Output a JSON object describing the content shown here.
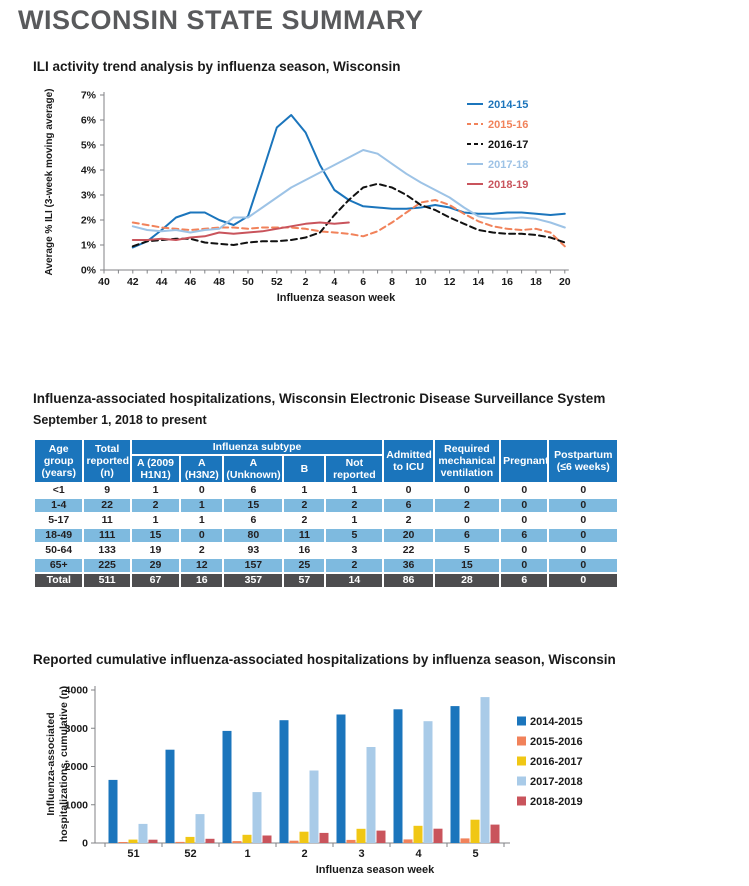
{
  "page_title": "WISCONSIN STATE SUMMARY",
  "sections": {
    "ili": {
      "heading": "ILI activity trend analysis by influenza season, Wisconsin"
    },
    "hospitalizations": {
      "heading": "Influenza-associated hospitalizations, Wisconsin Electronic Disease Surveillance System",
      "subheading": "September 1, 2018 to present",
      "table": {
        "header_groups": {
          "age_group": "Age group (years)",
          "total_reported": "Total reported (n)",
          "subtype_group": "Influenza subtype",
          "subtype_columns": [
            "A (2009 H1N1)",
            "A (H3N2)",
            "A (Unknown)",
            "B",
            "Not reported"
          ],
          "admitted_icu": "Admitted to ICU",
          "mech_vent": "Required mechanical ventilation",
          "pregnant": "Pregnant",
          "postpartum": "Postpartum (≤6 weeks)"
        },
        "rows": [
          {
            "age_group": "<1",
            "values": [
              9,
              1,
              0,
              6,
              1,
              1,
              0,
              0,
              0,
              0
            ]
          },
          {
            "age_group": "1-4",
            "values": [
              22,
              2,
              1,
              15,
              2,
              2,
              6,
              2,
              0,
              0
            ]
          },
          {
            "age_group": "5-17",
            "values": [
              11,
              1,
              1,
              6,
              2,
              1,
              2,
              0,
              0,
              0
            ]
          },
          {
            "age_group": "18-49",
            "values": [
              111,
              15,
              0,
              80,
              11,
              5,
              20,
              6,
              6,
              0
            ]
          },
          {
            "age_group": "50-64",
            "values": [
              133,
              19,
              2,
              93,
              16,
              3,
              22,
              5,
              0,
              0
            ]
          },
          {
            "age_group": "65+",
            "values": [
              225,
              29,
              12,
              157,
              25,
              2,
              36,
              15,
              0,
              0
            ]
          }
        ],
        "total_row": {
          "age_group": "Total",
          "values": [
            511,
            67,
            16,
            357,
            57,
            14,
            86,
            28,
            6,
            0
          ]
        },
        "colors": {
          "header_bg": "#1b75bc",
          "stripe_bg": "#7ebadf",
          "total_bg": "#4d4d4f"
        }
      }
    },
    "cumulative": {
      "heading": "Reported cumulative influenza-associated hospitalizations by influenza season, Wisconsin"
    }
  },
  "chart_data": [
    {
      "id": "ili_trend",
      "type": "line",
      "title": "ILI activity trend analysis by influenza season, Wisconsin",
      "xlabel": "Influenza season week",
      "ylabel": "Average % ILI (3-week moving average)",
      "ylim": [
        0,
        7
      ],
      "yticks": [
        "0%",
        "1%",
        "2%",
        "3%",
        "4%",
        "5%",
        "6%",
        "7%"
      ],
      "x_weeks": [
        40,
        41,
        42,
        43,
        44,
        45,
        46,
        47,
        48,
        49,
        50,
        51,
        52,
        1,
        2,
        3,
        4,
        5,
        6,
        7,
        8,
        9,
        10,
        11,
        12,
        13,
        14,
        15,
        16,
        17,
        18,
        19,
        20
      ],
      "x_labeled_ticks": [
        40,
        42,
        44,
        46,
        48,
        50,
        52,
        2,
        4,
        6,
        8,
        10,
        12,
        14,
        16,
        18,
        20
      ],
      "series_start_week": 42,
      "legend_position": "upper right",
      "axis_color": "#808285",
      "series": [
        {
          "name": "2014-15",
          "color": "#1b75bc",
          "style": "solid",
          "values": [
            0.9,
            1.15,
            1.6,
            2.1,
            2.3,
            2.3,
            2.0,
            1.8,
            2.15,
            3.9,
            5.7,
            6.2,
            5.5,
            4.2,
            3.2,
            2.8,
            2.55,
            2.5,
            2.45,
            2.45,
            2.5,
            2.6,
            2.5,
            2.3,
            2.25,
            2.25,
            2.3,
            2.3,
            2.25,
            2.2,
            2.25
          ]
        },
        {
          "name": "2015-16",
          "color": "#f1825a",
          "style": "dashed",
          "values": [
            1.9,
            1.8,
            1.7,
            1.65,
            1.6,
            1.65,
            1.7,
            1.7,
            1.65,
            1.7,
            1.7,
            1.7,
            1.65,
            1.55,
            1.5,
            1.45,
            1.35,
            1.55,
            1.9,
            2.3,
            2.7,
            2.8,
            2.6,
            2.25,
            1.95,
            1.75,
            1.65,
            1.6,
            1.65,
            1.5,
            0.95
          ]
        },
        {
          "name": "2016-17",
          "color": "#111111",
          "style": "dashed",
          "values": [
            0.95,
            1.15,
            1.2,
            1.25,
            1.25,
            1.1,
            1.05,
            1.0,
            1.1,
            1.15,
            1.15,
            1.2,
            1.3,
            1.5,
            2.2,
            2.8,
            3.3,
            3.45,
            3.3,
            3.0,
            2.6,
            2.4,
            2.1,
            1.85,
            1.6,
            1.5,
            1.45,
            1.45,
            1.4,
            1.3,
            1.1
          ]
        },
        {
          "name": "2017-18",
          "color": "#9dc3e6",
          "style": "solid",
          "values": [
            1.75,
            1.6,
            1.55,
            1.6,
            1.5,
            1.6,
            1.65,
            2.1,
            2.1,
            2.5,
            2.9,
            3.3,
            3.6,
            3.9,
            4.2,
            4.5,
            4.8,
            4.65,
            4.25,
            3.85,
            3.5,
            3.2,
            2.9,
            2.5,
            2.15,
            2.05,
            2.05,
            2.1,
            2.05,
            1.9,
            1.7
          ]
        },
        {
          "name": "2018-19",
          "color": "#c9545c",
          "style": "solid",
          "values": [
            1.2,
            1.2,
            1.25,
            1.2,
            1.3,
            1.35,
            1.5,
            1.45,
            1.5,
            1.55,
            1.65,
            1.75,
            1.85,
            1.9,
            1.85,
            1.9
          ]
        }
      ]
    },
    {
      "id": "cumulative_hospitalizations",
      "type": "bar",
      "title": "Reported cumulative influenza-associated hospitalizations by influenza season, Wisconsin",
      "categories": [
        "51",
        "52",
        "1",
        "2",
        "3",
        "4",
        "5"
      ],
      "xlabel": "Influenza season week",
      "ylabel": "Influenza-associated hospitalizations, cumulative (n)",
      "ylabel_lines": [
        "Influenza-associated",
        "hospitalizations, cumulative (n)"
      ],
      "ylim": [
        0,
        4000
      ],
      "yticks": [
        0,
        1000,
        2000,
        3000,
        4000
      ],
      "legend_position": "right",
      "axis_color": "#808285",
      "series": [
        {
          "name": "2014-2015",
          "color": "#1b75bc",
          "values": [
            1650,
            2440,
            2930,
            3210,
            3360,
            3495,
            3580
          ]
        },
        {
          "name": "2015-2016",
          "color": "#f1825a",
          "values": [
            25,
            30,
            50,
            60,
            80,
            95,
            120
          ]
        },
        {
          "name": "2016-2017",
          "color": "#f0c715",
          "values": [
            90,
            160,
            215,
            295,
            370,
            450,
            610
          ]
        },
        {
          "name": "2017-2018",
          "color": "#a9cbe8",
          "values": [
            500,
            755,
            1330,
            1895,
            2510,
            3185,
            3815
          ]
        },
        {
          "name": "2018-2019",
          "color": "#c9545c",
          "values": [
            85,
            110,
            195,
            265,
            325,
            375,
            480
          ]
        }
      ]
    }
  ]
}
